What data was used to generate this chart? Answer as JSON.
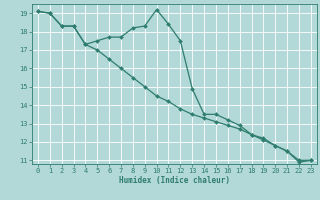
{
  "xlabel": "Humidex (Indice chaleur)",
  "ylabel": "",
  "background_color": "#b2d8d8",
  "grid_color": "#ffffff",
  "line_color": "#2e7d6e",
  "xlim": [
    -0.5,
    23.5
  ],
  "ylim": [
    10.8,
    19.5
  ],
  "x_ticks": [
    0,
    1,
    2,
    3,
    4,
    5,
    6,
    7,
    8,
    9,
    10,
    11,
    12,
    13,
    14,
    15,
    16,
    17,
    18,
    19,
    20,
    21,
    22,
    23
  ],
  "y_ticks": [
    11,
    12,
    13,
    14,
    15,
    16,
    17,
    18,
    19
  ],
  "line1_x": [
    0,
    1,
    2,
    3,
    4,
    5,
    6,
    7,
    8,
    9,
    10,
    11,
    12,
    13,
    14,
    15,
    16,
    17,
    18,
    19,
    20,
    21,
    22,
    23
  ],
  "line1_y": [
    19.1,
    19.0,
    18.3,
    18.3,
    17.3,
    17.5,
    17.7,
    17.7,
    18.2,
    18.3,
    19.2,
    18.4,
    17.5,
    14.9,
    13.5,
    13.5,
    13.2,
    12.9,
    12.4,
    12.2,
    11.8,
    11.5,
    10.9,
    11.0
  ],
  "line2_x": [
    0,
    1,
    2,
    3,
    4,
    5,
    6,
    7,
    8,
    9,
    10,
    11,
    12,
    13,
    14,
    15,
    16,
    17,
    18,
    19,
    20,
    21,
    22,
    23
  ],
  "line2_y": [
    19.1,
    19.0,
    18.3,
    18.3,
    17.3,
    17.0,
    16.5,
    16.0,
    15.5,
    15.0,
    14.5,
    14.2,
    13.8,
    13.5,
    13.3,
    13.1,
    12.9,
    12.7,
    12.4,
    12.1,
    11.8,
    11.5,
    11.0,
    11.0
  ],
  "xlabel_fontsize": 5.5,
  "tick_fontsize": 5.0
}
